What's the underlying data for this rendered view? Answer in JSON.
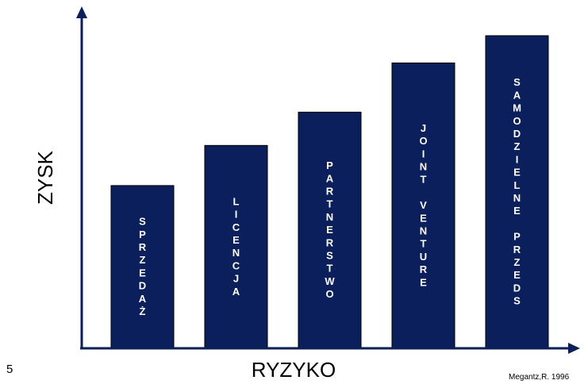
{
  "page_number": "5",
  "source": "Megantz,R. 1996",
  "colors": {
    "bar": "#0a1f5c",
    "axis": "#0a1f5c",
    "label": "#ffffff"
  },
  "chart_data": {
    "type": "bar",
    "xlabel": "RYZYKO",
    "ylabel": "ZYSK",
    "categories": [
      "SPRZEDAŻ",
      "LICENCJA",
      "PARTNERSTWO",
      "JOINT VENTURE",
      "SAMODZIELNE PRZEDS"
    ],
    "values": [
      215,
      268,
      312,
      377,
      413
    ],
    "ylim": [
      0,
      435
    ],
    "grid": false,
    "legend": "none"
  }
}
